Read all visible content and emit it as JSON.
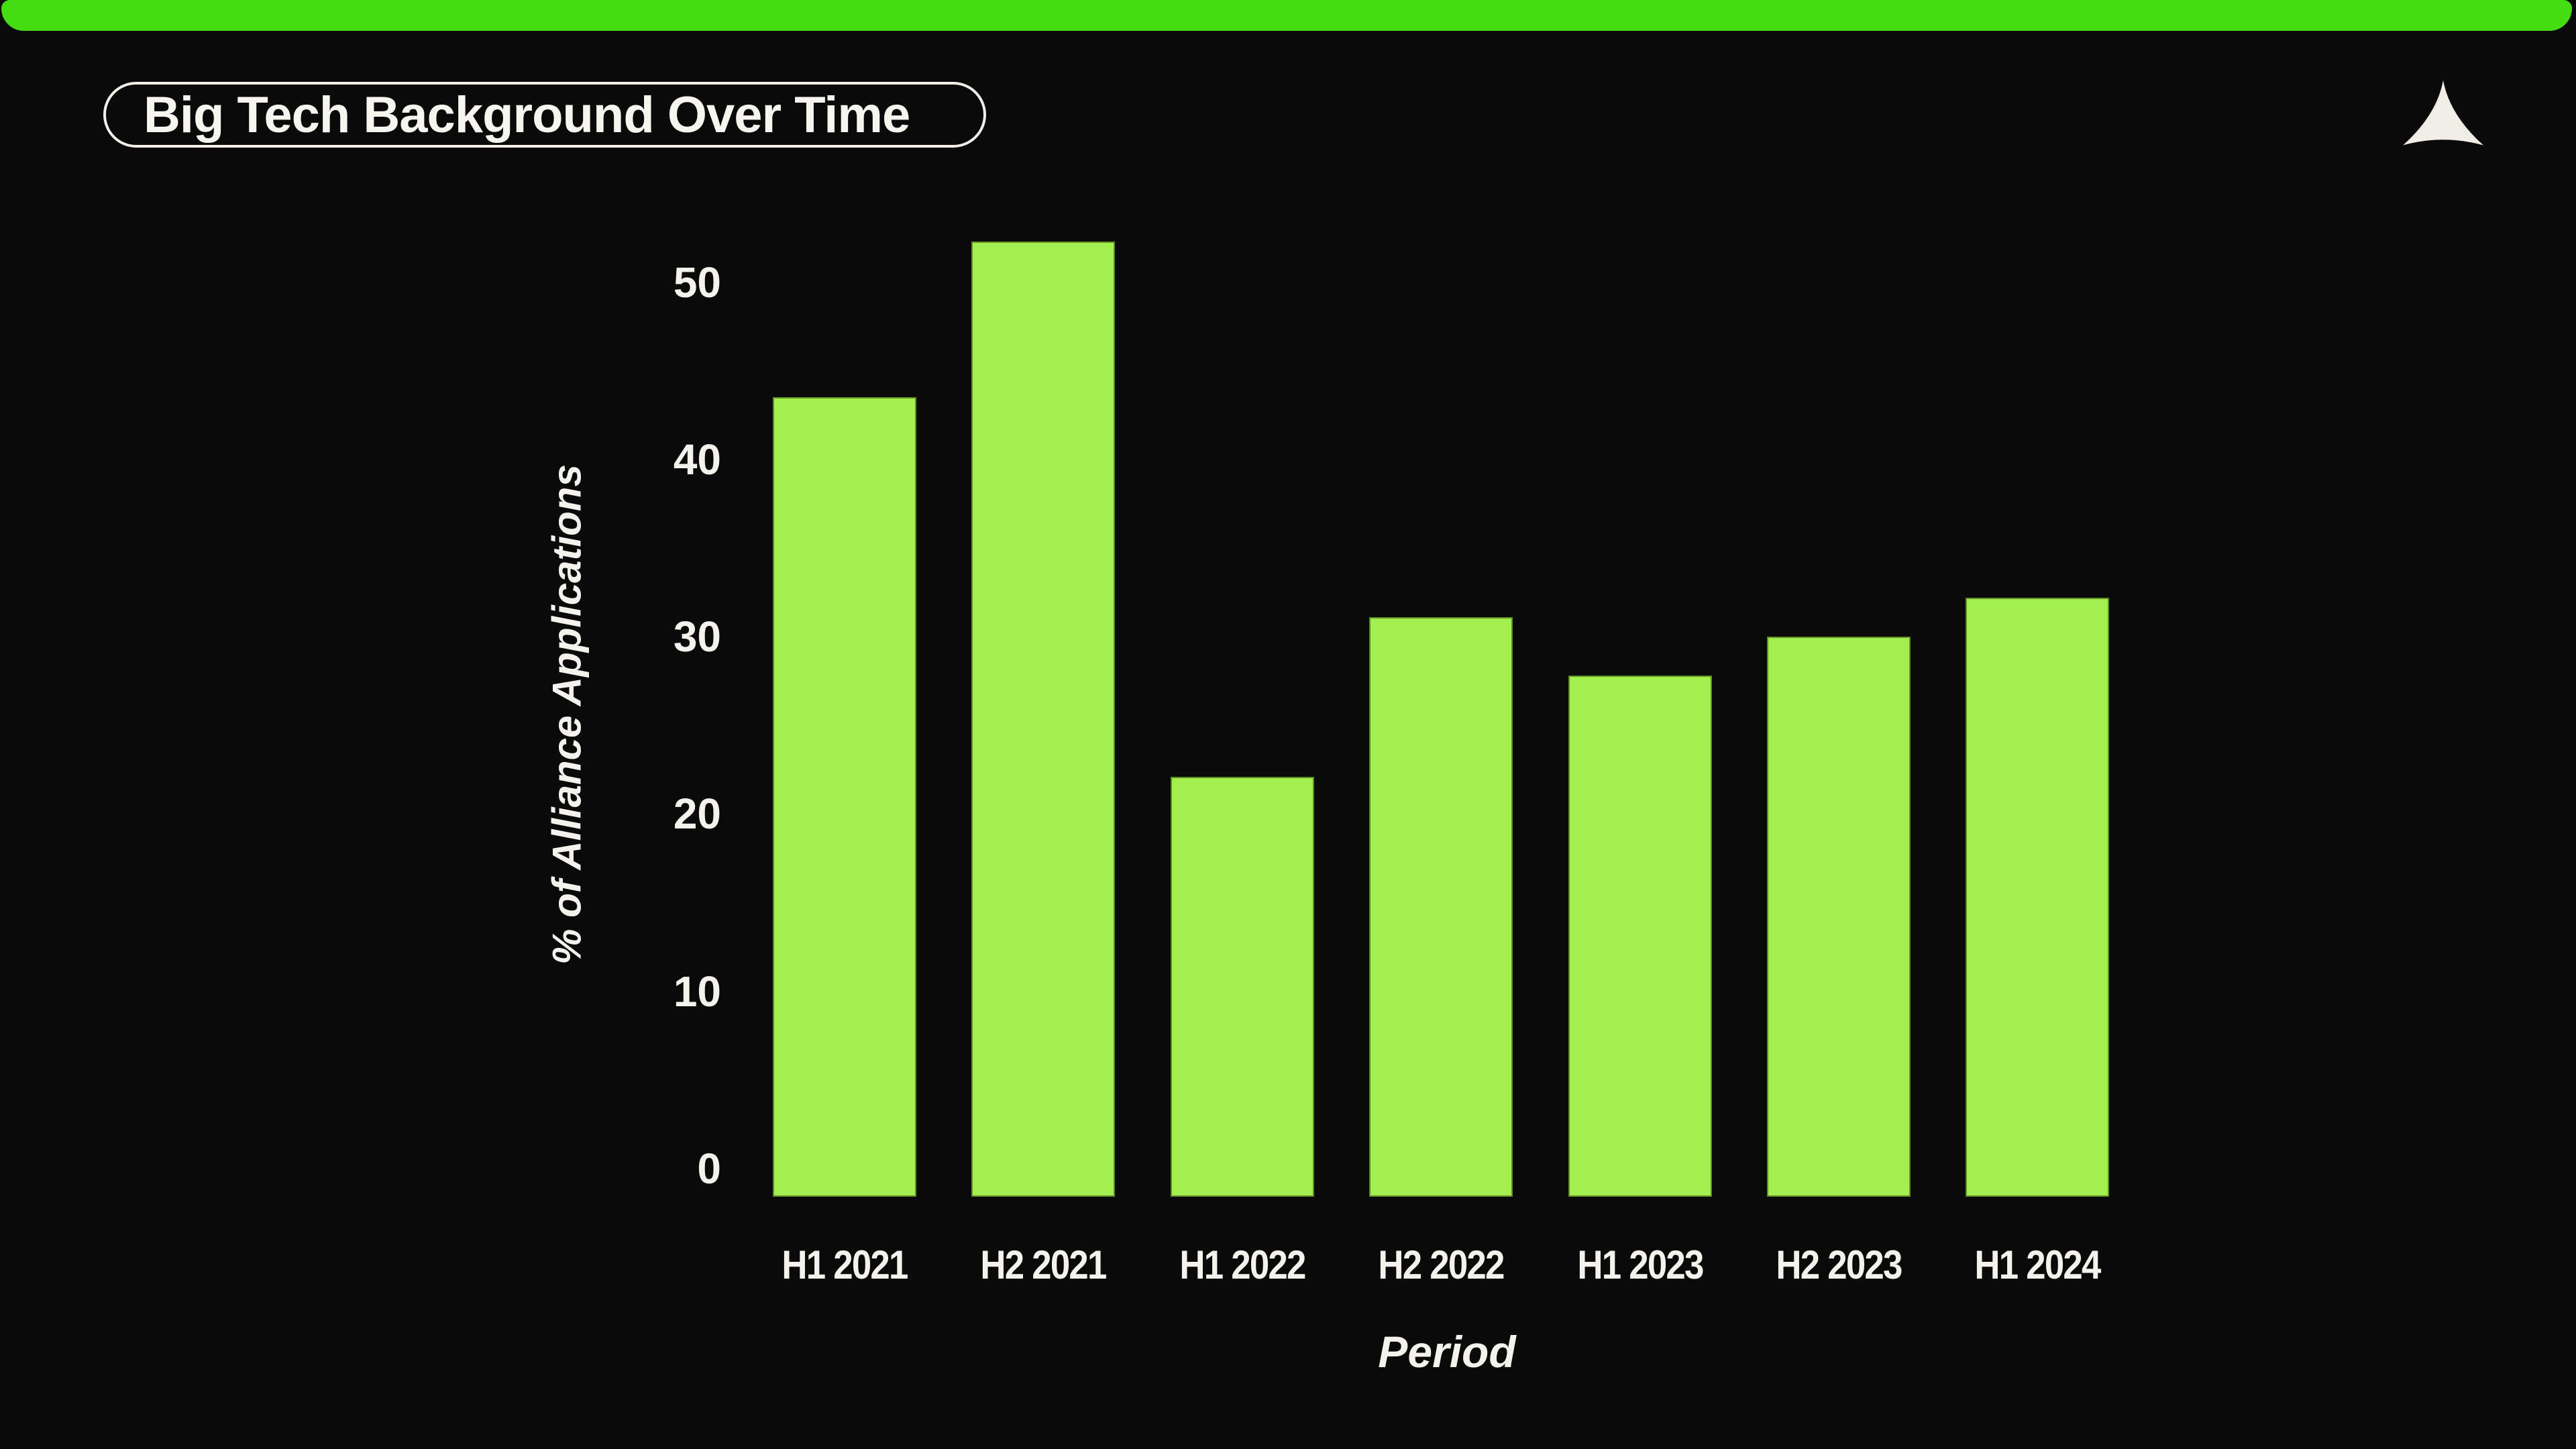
{
  "page": {
    "background_color": "#0a0a0b",
    "text_color": "#f4f2ec"
  },
  "header": {
    "accent_bar_color": "#44dd12",
    "logo_icon": "concave-triangle-logo",
    "logo_color": "#efede6"
  },
  "chart_data": {
    "type": "bar",
    "title": "Big Tech Background Over Time",
    "categories": [
      "H1 2021",
      "H2 2021",
      "H1 2022",
      "H2 2022",
      "H1 2023",
      "H2 2023",
      "H1 2024"
    ],
    "values": [
      43.5,
      52.3,
      22.1,
      31.1,
      27.8,
      30.0,
      32.2
    ],
    "xlabel": "Period",
    "ylabel": "% of Alliance Applications",
    "yticks": [
      0,
      10,
      20,
      30,
      40,
      50
    ],
    "ylim": [
      -1.6,
      55
    ],
    "bar_color": "#a3ef50",
    "grid": false,
    "legend": false
  }
}
